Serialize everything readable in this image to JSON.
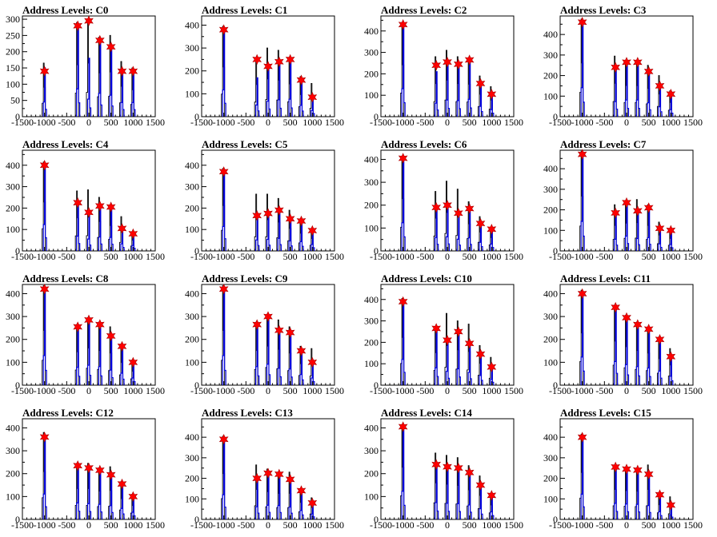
{
  "chart_data": [
    {
      "type": "histogram",
      "title": "Address Levels: C0",
      "xlim": [
        -1500,
        1500
      ],
      "ylim": [
        0,
        310
      ],
      "yticks": [
        0,
        50,
        100,
        150,
        200,
        250,
        300
      ],
      "xticks": [
        -1500,
        -1000,
        -500,
        0,
        500,
        1000,
        1500
      ],
      "peaks": [
        {
          "x": -1000,
          "star": 140,
          "blue": 150,
          "black": 165
        },
        {
          "x": -250,
          "star": 280,
          "blue": 285,
          "black": 290
        },
        {
          "x": 0,
          "star": 295,
          "blue": 180,
          "black": 300
        },
        {
          "x": 250,
          "star": 235,
          "blue": 240,
          "black": 245
        },
        {
          "x": 500,
          "star": 215,
          "blue": 220,
          "black": 250
        },
        {
          "x": 750,
          "star": 140,
          "blue": 145,
          "black": 170
        },
        {
          "x": 1000,
          "star": 140,
          "blue": 145,
          "black": 150
        }
      ]
    },
    {
      "type": "histogram",
      "title": "Address Levels: C1",
      "xlim": [
        -1500,
        1500
      ],
      "ylim": [
        0,
        440
      ],
      "yticks": [
        0,
        100,
        200,
        300,
        400
      ],
      "xticks": [
        -1500,
        -1000,
        -500,
        0,
        500,
        1000,
        1500
      ],
      "peaks": [
        {
          "x": -1000,
          "star": 380,
          "blue": 390,
          "black": 395
        },
        {
          "x": -250,
          "star": 250,
          "blue": 170,
          "black": 255
        },
        {
          "x": 0,
          "star": 220,
          "blue": 225,
          "black": 300
        },
        {
          "x": 250,
          "star": 240,
          "blue": 245,
          "black": 290
        },
        {
          "x": 500,
          "star": 250,
          "blue": 255,
          "black": 260
        },
        {
          "x": 750,
          "star": 160,
          "blue": 165,
          "black": 175
        },
        {
          "x": 1000,
          "star": 85,
          "blue": 90,
          "black": 145
        }
      ]
    },
    {
      "type": "histogram",
      "title": "Address Levels: C2",
      "xlim": [
        -1500,
        1500
      ],
      "ylim": [
        0,
        470
      ],
      "yticks": [
        0,
        100,
        200,
        300,
        400
      ],
      "xticks": [
        -1500,
        -1000,
        -500,
        0,
        500,
        1000,
        1500
      ],
      "peaks": [
        {
          "x": -1000,
          "star": 430,
          "blue": 435,
          "black": 440
        },
        {
          "x": -250,
          "star": 240,
          "blue": 210,
          "black": 280
        },
        {
          "x": 0,
          "star": 255,
          "blue": 260,
          "black": 310
        },
        {
          "x": 250,
          "star": 245,
          "blue": 250,
          "black": 280
        },
        {
          "x": 500,
          "star": 265,
          "blue": 270,
          "black": 275
        },
        {
          "x": 750,
          "star": 155,
          "blue": 160,
          "black": 190
        },
        {
          "x": 1000,
          "star": 105,
          "blue": 110,
          "black": 140
        }
      ]
    },
    {
      "type": "histogram",
      "title": "Address Levels: C3",
      "xlim": [
        -1500,
        1500
      ],
      "ylim": [
        0,
        490
      ],
      "yticks": [
        0,
        100,
        200,
        300,
        400
      ],
      "xticks": [
        -1500,
        -1000,
        -500,
        0,
        500,
        1000,
        1500
      ],
      "peaks": [
        {
          "x": -1000,
          "star": 460,
          "blue": 470,
          "black": 475
        },
        {
          "x": -250,
          "star": 240,
          "blue": 245,
          "black": 295
        },
        {
          "x": 0,
          "star": 265,
          "blue": 270,
          "black": 275
        },
        {
          "x": 250,
          "star": 265,
          "blue": 270,
          "black": 275
        },
        {
          "x": 500,
          "star": 220,
          "blue": 225,
          "black": 250
        },
        {
          "x": 750,
          "star": 150,
          "blue": 160,
          "black": 200
        },
        {
          "x": 1000,
          "star": 110,
          "blue": 115,
          "black": 125
        }
      ]
    },
    {
      "type": "histogram",
      "title": "Address Levels: C4",
      "xlim": [
        -1500,
        1500
      ],
      "ylim": [
        0,
        470
      ],
      "yticks": [
        0,
        100,
        200,
        300,
        400
      ],
      "xticks": [
        -1500,
        -1000,
        -500,
        0,
        500,
        1000,
        1500
      ],
      "peaks": [
        {
          "x": -1000,
          "star": 400,
          "blue": 410,
          "black": 415
        },
        {
          "x": -250,
          "star": 225,
          "blue": 230,
          "black": 280
        },
        {
          "x": 0,
          "star": 180,
          "blue": 185,
          "black": 285
        },
        {
          "x": 250,
          "star": 210,
          "blue": 215,
          "black": 250
        },
        {
          "x": 500,
          "star": 205,
          "blue": 210,
          "black": 215
        },
        {
          "x": 750,
          "star": 105,
          "blue": 110,
          "black": 160
        },
        {
          "x": 1000,
          "star": 80,
          "blue": 85,
          "black": 90
        }
      ]
    },
    {
      "type": "histogram",
      "title": "Address Levels: C5",
      "xlim": [
        -1500,
        1500
      ],
      "ylim": [
        0,
        470
      ],
      "yticks": [
        0,
        100,
        200,
        300,
        400
      ],
      "xticks": [
        -1500,
        -1000,
        -500,
        0,
        500,
        1000,
        1500
      ],
      "peaks": [
        {
          "x": -1000,
          "star": 370,
          "blue": 380,
          "black": 385
        },
        {
          "x": -250,
          "star": 165,
          "blue": 170,
          "black": 265
        },
        {
          "x": 0,
          "star": 175,
          "blue": 180,
          "black": 265
        },
        {
          "x": 250,
          "star": 190,
          "blue": 195,
          "black": 245
        },
        {
          "x": 500,
          "star": 150,
          "blue": 155,
          "black": 190
        },
        {
          "x": 750,
          "star": 140,
          "blue": 145,
          "black": 150
        },
        {
          "x": 1000,
          "star": 95,
          "blue": 100,
          "black": 105
        }
      ]
    },
    {
      "type": "histogram",
      "title": "Address Levels: C6",
      "xlim": [
        -1500,
        1500
      ],
      "ylim": [
        0,
        440
      ],
      "yticks": [
        0,
        100,
        200,
        300,
        400
      ],
      "xticks": [
        -1500,
        -1000,
        -500,
        0,
        500,
        1000,
        1500
      ],
      "peaks": [
        {
          "x": -1000,
          "star": 405,
          "blue": 410,
          "black": 415
        },
        {
          "x": -250,
          "star": 190,
          "blue": 195,
          "black": 260
        },
        {
          "x": 0,
          "star": 200,
          "blue": 205,
          "black": 305
        },
        {
          "x": 250,
          "star": 165,
          "blue": 170,
          "black": 270
        },
        {
          "x": 500,
          "star": 185,
          "blue": 190,
          "black": 215
        },
        {
          "x": 750,
          "star": 120,
          "blue": 125,
          "black": 150
        },
        {
          "x": 1000,
          "star": 95,
          "blue": 100,
          "black": 105
        }
      ]
    },
    {
      "type": "histogram",
      "title": "Address Levels: C7",
      "xlim": [
        -1500,
        1500
      ],
      "ylim": [
        0,
        490
      ],
      "yticks": [
        0,
        100,
        200,
        300,
        400
      ],
      "xticks": [
        -1500,
        -1000,
        -500,
        0,
        500,
        1000,
        1500
      ],
      "peaks": [
        {
          "x": -1000,
          "star": 470,
          "blue": 480,
          "black": 485
        },
        {
          "x": -250,
          "star": 185,
          "blue": 190,
          "black": 225
        },
        {
          "x": 0,
          "star": 235,
          "blue": 240,
          "black": 245
        },
        {
          "x": 250,
          "star": 195,
          "blue": 200,
          "black": 250
        },
        {
          "x": 500,
          "star": 210,
          "blue": 215,
          "black": 225
        },
        {
          "x": 750,
          "star": 110,
          "blue": 115,
          "black": 140
        },
        {
          "x": 1000,
          "star": 100,
          "blue": 105,
          "black": 110
        }
      ]
    },
    {
      "type": "histogram",
      "title": "Address Levels: C8",
      "xlim": [
        -1500,
        1500
      ],
      "ylim": [
        0,
        440
      ],
      "yticks": [
        0,
        100,
        200,
        300,
        400
      ],
      "xticks": [
        -1500,
        -1000,
        -500,
        0,
        500,
        1000,
        1500
      ],
      "peaks": [
        {
          "x": -1000,
          "star": 420,
          "blue": 430,
          "black": 435
        },
        {
          "x": -250,
          "star": 255,
          "blue": 260,
          "black": 265
        },
        {
          "x": 0,
          "star": 285,
          "blue": 290,
          "black": 295
        },
        {
          "x": 250,
          "star": 265,
          "blue": 270,
          "black": 275
        },
        {
          "x": 500,
          "star": 215,
          "blue": 220,
          "black": 255
        },
        {
          "x": 750,
          "star": 170,
          "blue": 175,
          "black": 180
        },
        {
          "x": 1000,
          "star": 100,
          "blue": 105,
          "black": 110
        }
      ]
    },
    {
      "type": "histogram",
      "title": "Address Levels: C9",
      "xlim": [
        -1500,
        1500
      ],
      "ylim": [
        0,
        440
      ],
      "yticks": [
        0,
        100,
        200,
        300,
        400
      ],
      "xticks": [
        -1500,
        -1000,
        -500,
        0,
        500,
        1000,
        1500
      ],
      "peaks": [
        {
          "x": -1000,
          "star": 420,
          "blue": 430,
          "black": 435
        },
        {
          "x": -250,
          "star": 265,
          "blue": 270,
          "black": 275
        },
        {
          "x": 0,
          "star": 300,
          "blue": 305,
          "black": 310
        },
        {
          "x": 250,
          "star": 240,
          "blue": 245,
          "black": 285
        },
        {
          "x": 500,
          "star": 230,
          "blue": 235,
          "black": 255
        },
        {
          "x": 750,
          "star": 150,
          "blue": 155,
          "black": 170
        },
        {
          "x": 1000,
          "star": 100,
          "blue": 105,
          "black": 160
        }
      ]
    },
    {
      "type": "histogram",
      "title": "Address Levels: C10",
      "xlim": [
        -1500,
        1500
      ],
      "ylim": [
        0,
        470
      ],
      "yticks": [
        0,
        100,
        200,
        300,
        400
      ],
      "xticks": [
        -1500,
        -1000,
        -500,
        0,
        500,
        1000,
        1500
      ],
      "peaks": [
        {
          "x": -1000,
          "star": 390,
          "blue": 400,
          "black": 405
        },
        {
          "x": -250,
          "star": 265,
          "blue": 270,
          "black": 275
        },
        {
          "x": 0,
          "star": 210,
          "blue": 215,
          "black": 335
        },
        {
          "x": 250,
          "star": 250,
          "blue": 255,
          "black": 300
        },
        {
          "x": 500,
          "star": 195,
          "blue": 200,
          "black": 285
        },
        {
          "x": 750,
          "star": 145,
          "blue": 150,
          "black": 185
        },
        {
          "x": 1000,
          "star": 85,
          "blue": 90,
          "black": 130
        }
      ]
    },
    {
      "type": "histogram",
      "title": "Address Levels: C11",
      "xlim": [
        -1500,
        1500
      ],
      "ylim": [
        0,
        440
      ],
      "yticks": [
        0,
        100,
        200,
        300,
        400
      ],
      "xticks": [
        -1500,
        -1000,
        -500,
        0,
        500,
        1000,
        1500
      ],
      "peaks": [
        {
          "x": -1000,
          "star": 400,
          "blue": 410,
          "black": 415
        },
        {
          "x": -250,
          "star": 340,
          "blue": 345,
          "black": 350
        },
        {
          "x": 0,
          "star": 295,
          "blue": 300,
          "black": 305
        },
        {
          "x": 250,
          "star": 265,
          "blue": 270,
          "black": 275
        },
        {
          "x": 500,
          "star": 245,
          "blue": 250,
          "black": 255
        },
        {
          "x": 750,
          "star": 200,
          "blue": 205,
          "black": 210
        },
        {
          "x": 1000,
          "star": 125,
          "blue": 130,
          "black": 160
        }
      ]
    },
    {
      "type": "histogram",
      "title": "Address Levels: C12",
      "xlim": [
        -1500,
        1500
      ],
      "ylim": [
        0,
        440
      ],
      "yticks": [
        0,
        100,
        200,
        300,
        400
      ],
      "xticks": [
        -1500,
        -1000,
        -500,
        0,
        500,
        1000,
        1500
      ],
      "peaks": [
        {
          "x": -1000,
          "star": 360,
          "blue": 370,
          "black": 380
        },
        {
          "x": -250,
          "star": 235,
          "blue": 240,
          "black": 245
        },
        {
          "x": 0,
          "star": 225,
          "blue": 230,
          "black": 245
        },
        {
          "x": 250,
          "star": 215,
          "blue": 220,
          "black": 225
        },
        {
          "x": 500,
          "star": 195,
          "blue": 200,
          "black": 230
        },
        {
          "x": 750,
          "star": 155,
          "blue": 160,
          "black": 165
        },
        {
          "x": 1000,
          "star": 100,
          "blue": 105,
          "black": 110
        }
      ]
    },
    {
      "type": "histogram",
      "title": "Address Levels: C13",
      "xlim": [
        -1500,
        1500
      ],
      "ylim": [
        0,
        490
      ],
      "yticks": [
        0,
        100,
        200,
        300,
        400
      ],
      "xticks": [
        -1500,
        -1000,
        -500,
        0,
        500,
        1000,
        1500
      ],
      "peaks": [
        {
          "x": -1000,
          "star": 390,
          "blue": 400,
          "black": 405
        },
        {
          "x": -250,
          "star": 200,
          "blue": 205,
          "black": 265
        },
        {
          "x": 0,
          "star": 225,
          "blue": 230,
          "black": 245
        },
        {
          "x": 250,
          "star": 220,
          "blue": 225,
          "black": 230
        },
        {
          "x": 500,
          "star": 195,
          "blue": 200,
          "black": 230
        },
        {
          "x": 750,
          "star": 140,
          "blue": 145,
          "black": 150
        },
        {
          "x": 1000,
          "star": 80,
          "blue": 85,
          "black": 105
        }
      ]
    },
    {
      "type": "histogram",
      "title": "Address Levels: C14",
      "xlim": [
        -1500,
        1500
      ],
      "ylim": [
        0,
        440
      ],
      "yticks": [
        0,
        100,
        200,
        300,
        400
      ],
      "xticks": [
        -1500,
        -1000,
        -500,
        0,
        500,
        1000,
        1500
      ],
      "peaks": [
        {
          "x": -1000,
          "star": 405,
          "blue": 410,
          "black": 415
        },
        {
          "x": -250,
          "star": 240,
          "blue": 245,
          "black": 290
        },
        {
          "x": 0,
          "star": 230,
          "blue": 235,
          "black": 280
        },
        {
          "x": 250,
          "star": 225,
          "blue": 230,
          "black": 270
        },
        {
          "x": 500,
          "star": 205,
          "blue": 210,
          "black": 235
        },
        {
          "x": 750,
          "star": 150,
          "blue": 155,
          "black": 190
        },
        {
          "x": 1000,
          "star": 105,
          "blue": 110,
          "black": 115
        }
      ]
    },
    {
      "type": "histogram",
      "title": "Address Levels: C15",
      "xlim": [
        -1500,
        1500
      ],
      "ylim": [
        0,
        490
      ],
      "yticks": [
        0,
        100,
        200,
        300,
        400
      ],
      "xticks": [
        -1500,
        -1000,
        -500,
        0,
        500,
        1000,
        1500
      ],
      "peaks": [
        {
          "x": -1000,
          "star": 400,
          "blue": 410,
          "black": 415
        },
        {
          "x": -250,
          "star": 255,
          "blue": 260,
          "black": 265
        },
        {
          "x": 0,
          "star": 245,
          "blue": 250,
          "black": 255
        },
        {
          "x": 250,
          "star": 240,
          "blue": 245,
          "black": 250
        },
        {
          "x": 500,
          "star": 220,
          "blue": 225,
          "black": 265
        },
        {
          "x": 750,
          "star": 120,
          "blue": 125,
          "black": 130
        },
        {
          "x": 1000,
          "star": 70,
          "blue": 75,
          "black": 110
        }
      ]
    }
  ],
  "colors": {
    "star_fill": "#ff0000",
    "star_stroke": "#aa0000",
    "blue_series": "#0000dd",
    "black_series": "#000000",
    "axis": "#000000"
  }
}
